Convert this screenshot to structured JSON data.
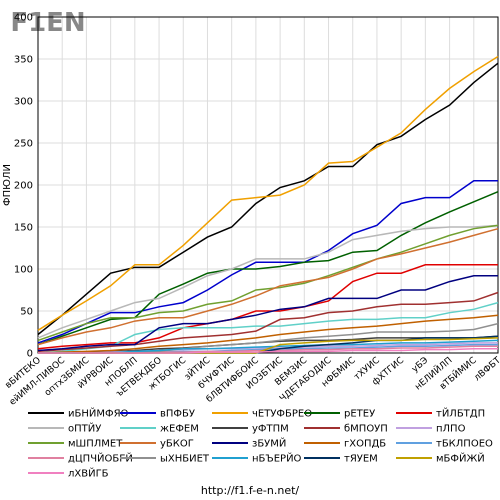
{
  "logo": "F1EN",
  "footer": "http://f1.f-e-n.net/",
  "chart_data": {
    "type": "line",
    "y_label": "ФПЮЛИ",
    "categories": [
      "вБИТЕКО",
      "ейИМЛ-ПИВОС",
      "оптхЗБМИС",
      "йУРВОИС",
      "нПОБЛП",
      "ъЕТВЕКДБО",
      "жТБОГИС",
      "зЙТИС",
      "бЧУФТИС",
      "бЛВТИФБОИС",
      "ИОЗБТИС",
      "ВЕМЗИС",
      "ЧДЕТАБОДИС",
      "нФБМИС",
      "тХУИС",
      "фХТГИС",
      "уБЭ",
      "нЕЛИЙЛП",
      "вТБЙМИС",
      "лВФБТ"
    ],
    "ylim": [
      0,
      400
    ],
    "yticks": [
      0,
      50,
      100,
      150,
      200,
      250,
      300,
      350,
      400
    ],
    "grid": true,
    "series": [
      {
        "name": "иБНЙМФЯО",
        "color": "#000000",
        "values": [
          22,
          45,
          70,
          95,
          102,
          102,
          120,
          138,
          150,
          178,
          197,
          205,
          222,
          222,
          248,
          258,
          278,
          295,
          322,
          345
        ]
      },
      {
        "name": "вПФБУ",
        "color": "#0000cc",
        "values": [
          12,
          22,
          35,
          48,
          48,
          55,
          60,
          75,
          93,
          108,
          108,
          108,
          122,
          142,
          152,
          178,
          185,
          185,
          205,
          205
        ]
      },
      {
        "name": "чЕТУФБРЕО",
        "color": "#f0a000",
        "values": [
          27,
          45,
          62,
          80,
          105,
          105,
          128,
          155,
          182,
          185,
          188,
          200,
          226,
          228,
          245,
          262,
          290,
          315,
          335,
          353
        ]
      },
      {
        "name": "рЕТЕУ",
        "color": "#006000",
        "values": [
          10,
          20,
          30,
          40,
          42,
          70,
          82,
          95,
          100,
          100,
          103,
          108,
          110,
          120,
          122,
          140,
          155,
          168,
          180,
          192
        ]
      },
      {
        "name": "тЙЛБТДП",
        "color": "#e00000",
        "values": [
          5,
          8,
          10,
          12,
          12,
          18,
          30,
          35,
          40,
          50,
          50,
          55,
          62,
          85,
          95,
          95,
          105,
          105,
          105,
          105
        ]
      },
      {
        "name": "оПТЙУ",
        "color": "#b8b8b8",
        "values": [
          18,
          30,
          40,
          50,
          60,
          65,
          78,
          92,
          100,
          112,
          112,
          112,
          120,
          135,
          140,
          145,
          148,
          150,
          150,
          152
        ]
      },
      {
        "name": "жЕФЕМ",
        "color": "#60d0c8",
        "values": [
          0,
          2,
          5,
          8,
          22,
          28,
          30,
          30,
          30,
          32,
          32,
          35,
          38,
          40,
          40,
          42,
          42,
          48,
          52,
          60
        ]
      },
      {
        "name": "уФТПМ",
        "color": "#404040",
        "values": [
          0,
          0,
          1,
          2,
          3,
          5,
          6,
          8,
          10,
          12,
          14,
          15,
          15,
          16,
          18,
          18,
          18,
          18,
          18,
          20
        ]
      },
      {
        "name": "бМПОУП",
        "color": "#a03030",
        "values": [
          2,
          4,
          6,
          8,
          10,
          14,
          18,
          20,
          22,
          26,
          40,
          42,
          48,
          50,
          55,
          58,
          58,
          60,
          62,
          72
        ]
      },
      {
        "name": "пЛПО",
        "color": "#c0a0e0",
        "values": [
          0,
          0,
          0,
          1,
          2,
          3,
          4,
          5,
          5,
          6,
          6,
          7,
          8,
          8,
          9,
          10,
          10,
          11,
          12,
          12
        ]
      },
      {
        "name": "мШПЛМЕТ",
        "color": "#70a030",
        "values": [
          15,
          25,
          35,
          42,
          42,
          48,
          50,
          58,
          62,
          75,
          78,
          83,
          92,
          102,
          112,
          120,
          130,
          140,
          148,
          152
        ]
      },
      {
        "name": "уБКОГ",
        "color": "#d07030",
        "values": [
          10,
          18,
          25,
          30,
          38,
          42,
          42,
          50,
          58,
          68,
          80,
          85,
          90,
          100,
          112,
          118,
          125,
          132,
          140,
          148
        ]
      },
      {
        "name": "зБУМЙ",
        "color": "#000080",
        "values": [
          3,
          5,
          8,
          10,
          10,
          30,
          35,
          35,
          40,
          45,
          52,
          55,
          65,
          65,
          65,
          75,
          75,
          85,
          92,
          92
        ]
      },
      {
        "name": "гХОПДБ",
        "color": "#c06000",
        "values": [
          0,
          1,
          2,
          3,
          5,
          8,
          10,
          12,
          15,
          18,
          22,
          25,
          28,
          30,
          32,
          35,
          38,
          40,
          42,
          45
        ]
      },
      {
        "name": "тБКЛПОЕО",
        "color": "#60a0e0",
        "values": [
          0,
          0,
          0,
          0,
          1,
          1,
          2,
          2,
          3,
          4,
          5,
          5,
          6,
          6,
          7,
          8,
          8,
          9,
          10,
          10
        ]
      },
      {
        "name": "дЦПЧЙОБГЙ",
        "color": "#e080a0",
        "values": [
          0,
          0,
          0,
          0,
          0,
          1,
          1,
          2,
          2,
          3,
          3,
          4,
          4,
          5,
          5,
          6,
          6,
          7,
          8,
          8
        ]
      },
      {
        "name": "ыХНБИЕТ",
        "color": "#909090",
        "values": [
          0,
          0,
          0,
          0,
          0,
          2,
          5,
          8,
          10,
          12,
          15,
          18,
          20,
          22,
          25,
          25,
          25,
          26,
          28,
          35
        ]
      },
      {
        "name": "нБЪЕРЙО",
        "color": "#20a0d0",
        "values": [
          0,
          0,
          0,
          0,
          2,
          3,
          5,
          5,
          6,
          7,
          8,
          9,
          10,
          10,
          11,
          12,
          12,
          13,
          14,
          15
        ]
      },
      {
        "name": "тЯУЕМ",
        "color": "#003060",
        "values": [
          0,
          0,
          0,
          0,
          0,
          0,
          0,
          0,
          0,
          0,
          5,
          8,
          10,
          12,
          15,
          15,
          18,
          18,
          18,
          20
        ]
      },
      {
        "name": "мБФЙЖЙ",
        "color": "#c0a000",
        "values": [
          0,
          0,
          0,
          0,
          0,
          0,
          0,
          0,
          0,
          0,
          10,
          12,
          14,
          15,
          15,
          15,
          16,
          16,
          17,
          18
        ]
      },
      {
        "name": "лХВЙГБ",
        "color": "#f080c0",
        "values": [
          0,
          0,
          0,
          0,
          0,
          0,
          0,
          1,
          1,
          1,
          2,
          2,
          2,
          3,
          3,
          3,
          4,
          4,
          5,
          5
        ]
      }
    ]
  }
}
